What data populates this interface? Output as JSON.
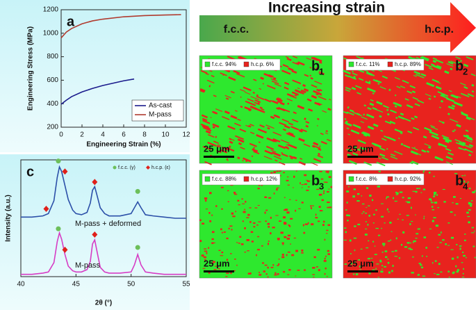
{
  "chart_data": [
    {
      "type": "line",
      "panel": "a",
      "xlabel": "Engineering Strain (%)",
      "ylabel": "Engineering Stress (MPa)",
      "xlim": [
        0,
        12
      ],
      "ylim": [
        200,
        1200
      ],
      "xticks": [
        0,
        2,
        4,
        6,
        8,
        10,
        12
      ],
      "yticks": [
        200,
        400,
        600,
        800,
        1000,
        1200
      ],
      "legend": "lower right",
      "series": [
        {
          "name": "As-cast",
          "color": "#1a1a8c",
          "x": [
            0,
            0.5,
            1,
            2,
            3,
            4,
            5,
            6,
            7
          ],
          "values": [
            395,
            430,
            460,
            500,
            530,
            555,
            575,
            595,
            610
          ]
        },
        {
          "name": "M-pass",
          "color": "#b03a2e",
          "x": [
            0,
            0.5,
            1,
            2,
            3,
            4,
            6,
            8,
            10,
            11.5
          ],
          "values": [
            960,
            1010,
            1040,
            1080,
            1105,
            1120,
            1140,
            1150,
            1155,
            1158
          ]
        }
      ]
    },
    {
      "type": "line",
      "panel": "c",
      "xlabel": "2θ (°)",
      "ylabel": "Intensity (a.u.)",
      "xlim": [
        40,
        55
      ],
      "ylim": [
        0,
        10
      ],
      "xticks": [
        40,
        45,
        50,
        55
      ],
      "x": [
        40,
        41,
        42,
        42.5,
        43,
        43.3,
        43.5,
        43.7,
        44,
        44.3,
        44.7,
        45,
        45.5,
        46,
        46.3,
        46.5,
        46.7,
        46.9,
        47.2,
        47.6,
        48,
        49,
        50,
        50.3,
        50.6,
        50.9,
        51.3,
        52,
        53,
        54,
        55
      ],
      "series": [
        {
          "name": "M-pass + deformed",
          "color": "#2b4fa8",
          "values": [
            5.1,
            5.1,
            5.2,
            5.4,
            6.5,
            8.5,
            9.4,
            9.0,
            7.8,
            6.6,
            5.7,
            5.4,
            5.3,
            5.5,
            6.3,
            7.4,
            7.7,
            7.0,
            5.9,
            5.4,
            5.2,
            5.2,
            5.4,
            5.9,
            6.4,
            5.9,
            5.3,
            5.2,
            5.1,
            5.0,
            5.0
          ]
        },
        {
          "name": "M-pass",
          "color": "#d63cc4",
          "values": [
            0.2,
            0.2,
            0.3,
            0.4,
            1.2,
            3.0,
            3.75,
            3.2,
            1.9,
            0.9,
            0.5,
            0.4,
            0.4,
            0.6,
            1.3,
            2.8,
            3.15,
            2.2,
            0.8,
            0.4,
            0.3,
            0.3,
            0.4,
            1.0,
            1.9,
            1.0,
            0.4,
            0.3,
            0.2,
            0.2,
            0.2
          ]
        }
      ],
      "markers": [
        {
          "name": "f.c.c. (γ)",
          "color": "#6cbf5a",
          "shape": "circle",
          "x": [
            43.4,
            50.6,
            43.4,
            50.6
          ],
          "values": [
            9.9,
            7.3,
            4.1,
            2.5
          ]
        },
        {
          "name": "h.c.p. (ε)",
          "color": "#e0201a",
          "shape": "diamond",
          "x": [
            42.3,
            44.0,
            46.7,
            44.0,
            46.7
          ],
          "values": [
            5.8,
            9.0,
            8.1,
            2.3,
            3.6
          ]
        }
      ]
    }
  ],
  "strain_arrow": {
    "title": "Increasing strain",
    "start": "f.c.c.",
    "end": "h.c.p."
  },
  "maps": [
    {
      "label": "b",
      "sub": "1",
      "legend": [
        "f.c.c. 94%",
        "h.c.p. 6%"
      ],
      "scale": "25 μm",
      "background": "#2ee82e",
      "speckle": "#e8231e"
    },
    {
      "label": "b",
      "sub": "2",
      "legend": [
        "f.c.c. 11%",
        "h.c.p. 89%"
      ],
      "scale": "25 μm",
      "background": "#e8231e",
      "speckle": "#2ee82e"
    },
    {
      "label": "b",
      "sub": "3",
      "legend": [
        "f.c.c. 88%",
        "h.c.p. 12%"
      ],
      "scale": "25 μm",
      "background": "#2ee82e",
      "speckle": "#e8231e"
    },
    {
      "label": "b",
      "sub": "4",
      "legend": [
        "f.c.c. 8%",
        "h.c.p. 92%"
      ],
      "scale": "25 μm",
      "background": "#e8231e",
      "speckle": "#2ee82e"
    }
  ]
}
